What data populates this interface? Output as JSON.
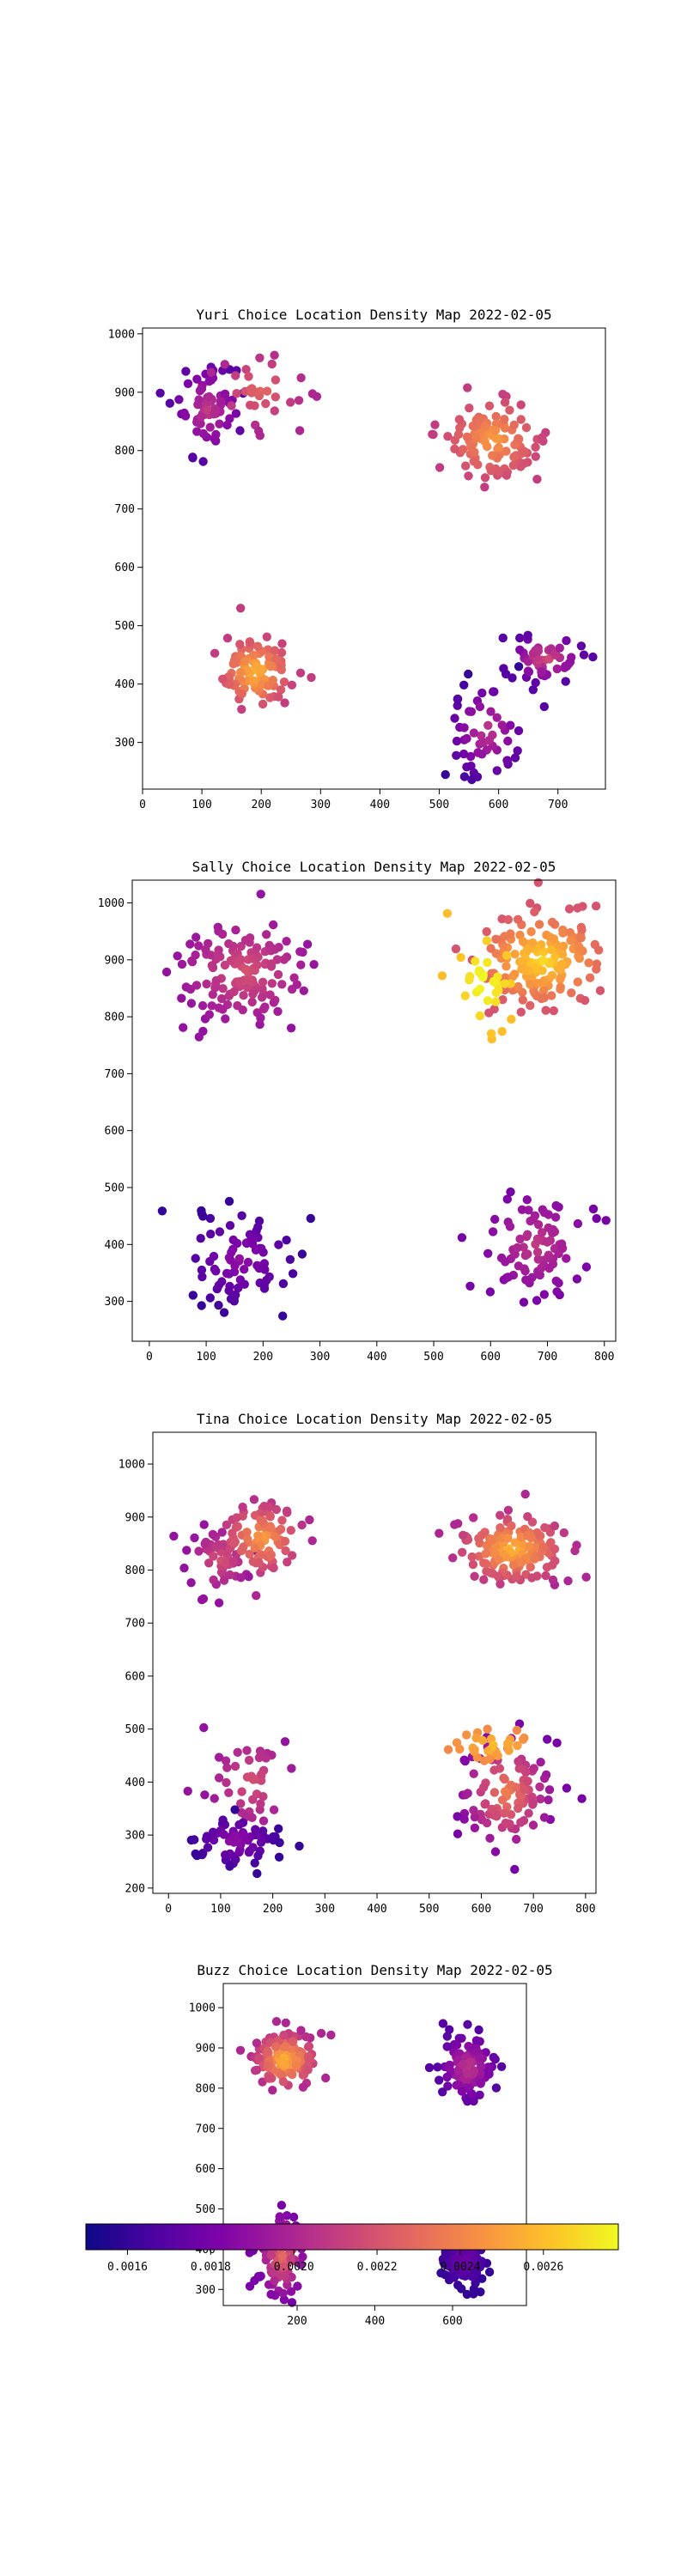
{
  "figure": {
    "colorbar": {
      "colormap": "plasma",
      "vmin": 0.0015,
      "vmax": 0.00278,
      "ticks": [
        0.0016,
        0.0018,
        0.002,
        0.0022,
        0.0024,
        0.0026
      ],
      "tick_labels": [
        "0.0016",
        "0.0018",
        "0.0020",
        "0.0022",
        "0.0024",
        "0.0026"
      ]
    }
  },
  "chart_data": [
    {
      "type": "scatter",
      "title": "Yuri Choice Location Density Map 2022-02-05",
      "xlim": [
        0,
        780
      ],
      "ylim": [
        220,
        1010
      ],
      "xticks": [
        0,
        100,
        200,
        300,
        400,
        500,
        600,
        700
      ],
      "yticks": [
        300,
        400,
        500,
        600,
        700,
        800,
        900,
        1000
      ],
      "clusters": [
        {
          "cx": 110,
          "cy": 870,
          "sx": 28,
          "sy": 38,
          "n": 70,
          "c0": 0.0017,
          "c1": 0.0021,
          "seed": 11
        },
        {
          "cx": 200,
          "cy": 905,
          "sx": 35,
          "sy": 30,
          "n": 35,
          "c0": 0.002,
          "c1": 0.0023,
          "seed": 12
        },
        {
          "cx": 590,
          "cy": 820,
          "sx": 40,
          "sy": 35,
          "n": 110,
          "c0": 0.0021,
          "c1": 0.0025,
          "seed": 13
        },
        {
          "cx": 190,
          "cy": 420,
          "sx": 30,
          "sy": 30,
          "n": 100,
          "c0": 0.0021,
          "c1": 0.0026,
          "seed": 14
        },
        {
          "cx": 680,
          "cy": 445,
          "sx": 30,
          "sy": 20,
          "n": 60,
          "c0": 0.0017,
          "c1": 0.0022,
          "seed": 15
        },
        {
          "cx": 580,
          "cy": 320,
          "sx": 35,
          "sy": 45,
          "n": 55,
          "c0": 0.0016,
          "c1": 0.0021,
          "seed": 16
        }
      ]
    },
    {
      "type": "scatter",
      "title": "Sally Choice Location Density Map 2022-02-05",
      "xlim": [
        -30,
        820
      ],
      "ylim": [
        230,
        1040
      ],
      "xticks": [
        0,
        100,
        200,
        300,
        400,
        500,
        600,
        700,
        800
      ],
      "yticks": [
        300,
        400,
        500,
        600,
        700,
        800,
        900,
        1000
      ],
      "clusters": [
        {
          "cx": 170,
          "cy": 880,
          "sx": 55,
          "sy": 45,
          "n": 140,
          "c0": 0.0019,
          "c1": 0.0022,
          "seed": 21
        },
        {
          "cx": 690,
          "cy": 900,
          "sx": 55,
          "sy": 40,
          "n": 170,
          "c0": 0.0022,
          "c1": 0.0027,
          "seed": 22
        },
        {
          "cx": 590,
          "cy": 860,
          "sx": 25,
          "sy": 45,
          "n": 30,
          "c0": 0.0026,
          "c1": 0.0028,
          "seed": 23
        },
        {
          "cx": 160,
          "cy": 375,
          "sx": 50,
          "sy": 45,
          "n": 80,
          "c0": 0.0016,
          "c1": 0.0019,
          "seed": 24
        },
        {
          "cx": 680,
          "cy": 400,
          "sx": 45,
          "sy": 45,
          "n": 90,
          "c0": 0.0018,
          "c1": 0.0021,
          "seed": 25
        }
      ]
    },
    {
      "type": "scatter",
      "title": "Tina Choice Location Density Map 2022-02-05",
      "xlim": [
        -30,
        820
      ],
      "ylim": [
        190,
        1060
      ],
      "xticks": [
        0,
        100,
        200,
        300,
        400,
        500,
        600,
        700,
        800
      ],
      "yticks": [
        200,
        300,
        400,
        500,
        600,
        700,
        800,
        900,
        1000
      ],
      "clusters": [
        {
          "cx": 100,
          "cy": 820,
          "sx": 30,
          "sy": 30,
          "n": 50,
          "c0": 0.0019,
          "c1": 0.0022,
          "seed": 31
        },
        {
          "cx": 180,
          "cy": 860,
          "sx": 40,
          "sy": 35,
          "n": 90,
          "c0": 0.002,
          "c1": 0.0025,
          "seed": 32
        },
        {
          "cx": 660,
          "cy": 840,
          "sx": 55,
          "sy": 35,
          "n": 150,
          "c0": 0.002,
          "c1": 0.0026,
          "seed": 33
        },
        {
          "cx": 160,
          "cy": 400,
          "sx": 40,
          "sy": 45,
          "n": 45,
          "c0": 0.0019,
          "c1": 0.0022,
          "seed": 34
        },
        {
          "cx": 130,
          "cy": 290,
          "sx": 40,
          "sy": 25,
          "n": 70,
          "c0": 0.0016,
          "c1": 0.0019,
          "seed": 35
        },
        {
          "cx": 650,
          "cy": 380,
          "sx": 45,
          "sy": 55,
          "n": 110,
          "c0": 0.0018,
          "c1": 0.0024,
          "seed": 36
        },
        {
          "cx": 620,
          "cy": 470,
          "sx": 40,
          "sy": 15,
          "n": 30,
          "c0": 0.0024,
          "c1": 0.0026,
          "seed": 37
        }
      ]
    },
    {
      "type": "scatter",
      "title": "Buzz Choice Location Density Map 2022-02-05",
      "xlim": [
        10,
        790
      ],
      "ylim": [
        260,
        1060
      ],
      "xticks": [
        200,
        400,
        600
      ],
      "yticks": [
        300,
        400,
        500,
        600,
        700,
        800,
        900,
        1000
      ],
      "clusters": [
        {
          "cx": 170,
          "cy": 870,
          "sx": 40,
          "sy": 35,
          "n": 140,
          "c0": 0.002,
          "c1": 0.0026,
          "seed": 41
        },
        {
          "cx": 640,
          "cy": 850,
          "sx": 35,
          "sy": 40,
          "n": 110,
          "c0": 0.0017,
          "c1": 0.0021,
          "seed": 42
        },
        {
          "cx": 160,
          "cy": 380,
          "sx": 28,
          "sy": 50,
          "n": 120,
          "c0": 0.0018,
          "c1": 0.0023,
          "seed": 43
        },
        {
          "cx": 630,
          "cy": 375,
          "sx": 28,
          "sy": 30,
          "n": 140,
          "c0": 0.0016,
          "c1": 0.0018,
          "seed": 44
        }
      ]
    }
  ]
}
